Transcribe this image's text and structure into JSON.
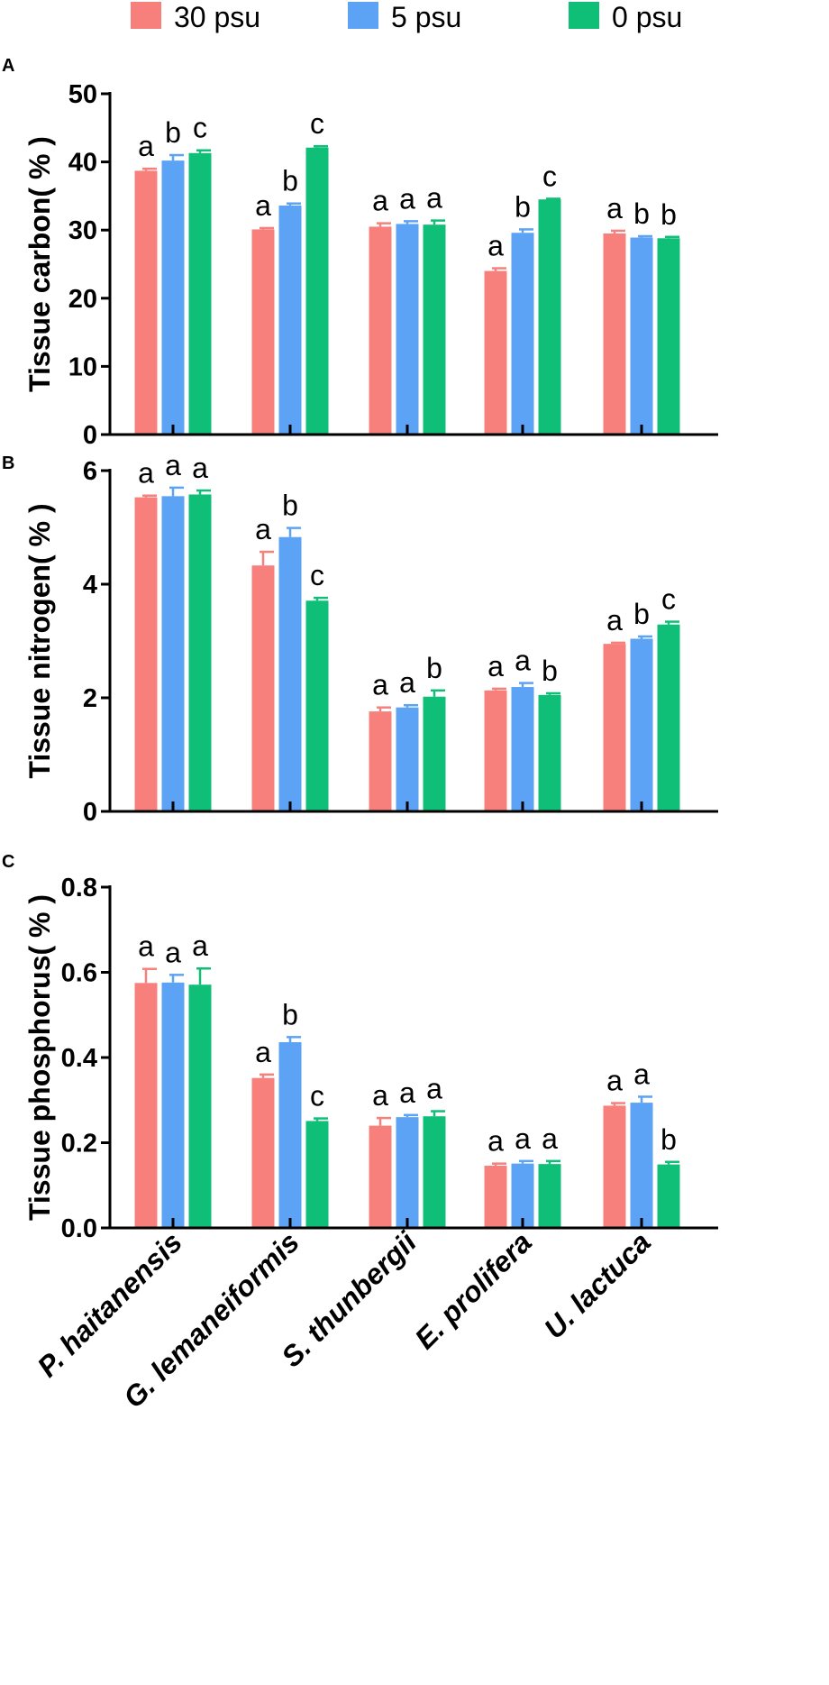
{
  "chart_data": [
    {
      "type": "bar",
      "panel": "A",
      "ylabel": "Tissue carbon( % )",
      "ylim": [
        0,
        50
      ],
      "yticks": [
        0,
        10,
        20,
        30,
        40,
        50
      ],
      "tick_labels": [
        "0",
        "10",
        "20",
        "30",
        "40",
        "50"
      ],
      "categories": [
        "P. haitanensis",
        "G. lemaneiformis",
        "S. thunbergii",
        "E. prolifera",
        "U. lactuca"
      ],
      "series": [
        {
          "name": "30 psu",
          "values": [
            38.7,
            30.1,
            30.5,
            24.0,
            29.5
          ],
          "errors": [
            0.3,
            0.2,
            0.5,
            0.4,
            0.4
          ],
          "letters": [
            "a",
            "a",
            "a",
            "a",
            "a"
          ]
        },
        {
          "name": "5 psu",
          "values": [
            40.2,
            33.6,
            30.9,
            29.6,
            28.9
          ],
          "errors": [
            0.8,
            0.3,
            0.4,
            0.5,
            0.2
          ],
          "letters": [
            "b",
            "b",
            "a",
            "b",
            "b"
          ]
        },
        {
          "name": "0 psu",
          "values": [
            41.3,
            42.1,
            30.8,
            34.5,
            28.8
          ],
          "errors": [
            0.4,
            0.2,
            0.6,
            0.1,
            0.2
          ],
          "letters": [
            "c",
            "c",
            "a",
            "c",
            "b"
          ]
        }
      ]
    },
    {
      "type": "bar",
      "panel": "B",
      "ylabel": "Tissue nitrogen( % )",
      "ylim": [
        0,
        6
      ],
      "yticks": [
        0,
        2,
        4,
        6
      ],
      "tick_labels": [
        "0",
        "2",
        "4",
        "6"
      ],
      "categories": [
        "P. haitanensis",
        "G. lemaneiformis",
        "S. thunbergii",
        "E. prolifera",
        "U. lactuca"
      ],
      "series": [
        {
          "name": "30 psu",
          "values": [
            5.53,
            4.33,
            1.76,
            2.13,
            2.95
          ],
          "errors": [
            0.03,
            0.24,
            0.07,
            0.03,
            0.02
          ],
          "letters": [
            "a",
            "a",
            "a",
            "a",
            "a"
          ]
        },
        {
          "name": "5 psu",
          "values": [
            5.55,
            4.83,
            1.83,
            2.19,
            3.04
          ],
          "errors": [
            0.15,
            0.16,
            0.04,
            0.07,
            0.04
          ],
          "letters": [
            "a",
            "b",
            "a",
            "a",
            "b"
          ]
        },
        {
          "name": "0 psu",
          "values": [
            5.58,
            3.71,
            2.02,
            2.05,
            3.29
          ],
          "errors": [
            0.07,
            0.05,
            0.11,
            0.03,
            0.05
          ],
          "letters": [
            "a",
            "c",
            "b",
            "b",
            "c"
          ]
        }
      ]
    },
    {
      "type": "bar",
      "panel": "C",
      "ylabel": "Tissue phosphorus( % )",
      "ylim": [
        0,
        0.8
      ],
      "yticks": [
        0,
        0.2,
        0.4,
        0.6,
        0.8
      ],
      "tick_labels": [
        "0.0",
        "0.2",
        "0.4",
        "0.6",
        "0.8"
      ],
      "categories": [
        "P. haitanensis",
        "G. lemaneiformis",
        "S. thunbergii",
        "E. prolifera",
        "U. lactuca"
      ],
      "series": [
        {
          "name": "30 psu",
          "values": [
            0.575,
            0.352,
            0.24,
            0.146,
            0.287
          ],
          "errors": [
            0.033,
            0.008,
            0.018,
            0.005,
            0.006
          ],
          "letters": [
            "a",
            "a",
            "a",
            "a",
            "a"
          ]
        },
        {
          "name": "5 psu",
          "values": [
            0.576,
            0.436,
            0.26,
            0.151,
            0.294
          ],
          "errors": [
            0.018,
            0.012,
            0.005,
            0.006,
            0.014
          ],
          "letters": [
            "a",
            "b",
            "a",
            "a",
            "a"
          ]
        },
        {
          "name": "0 psu",
          "values": [
            0.571,
            0.251,
            0.262,
            0.15,
            0.149
          ],
          "errors": [
            0.038,
            0.006,
            0.012,
            0.007,
            0.006
          ],
          "letters": [
            "a",
            "c",
            "a",
            "a",
            "b"
          ]
        }
      ]
    }
  ],
  "legend": [
    {
      "label": "30 psu",
      "color": "#F8807C"
    },
    {
      "label": "5 psu",
      "color": "#5DA3F5"
    },
    {
      "label": "0 psu",
      "color": "#10BF77"
    }
  ],
  "x_categories": [
    "P. haitanensis",
    "G. lemaneiformis",
    "S. thunbergii",
    "E. prolifera",
    "U. lactuca"
  ]
}
